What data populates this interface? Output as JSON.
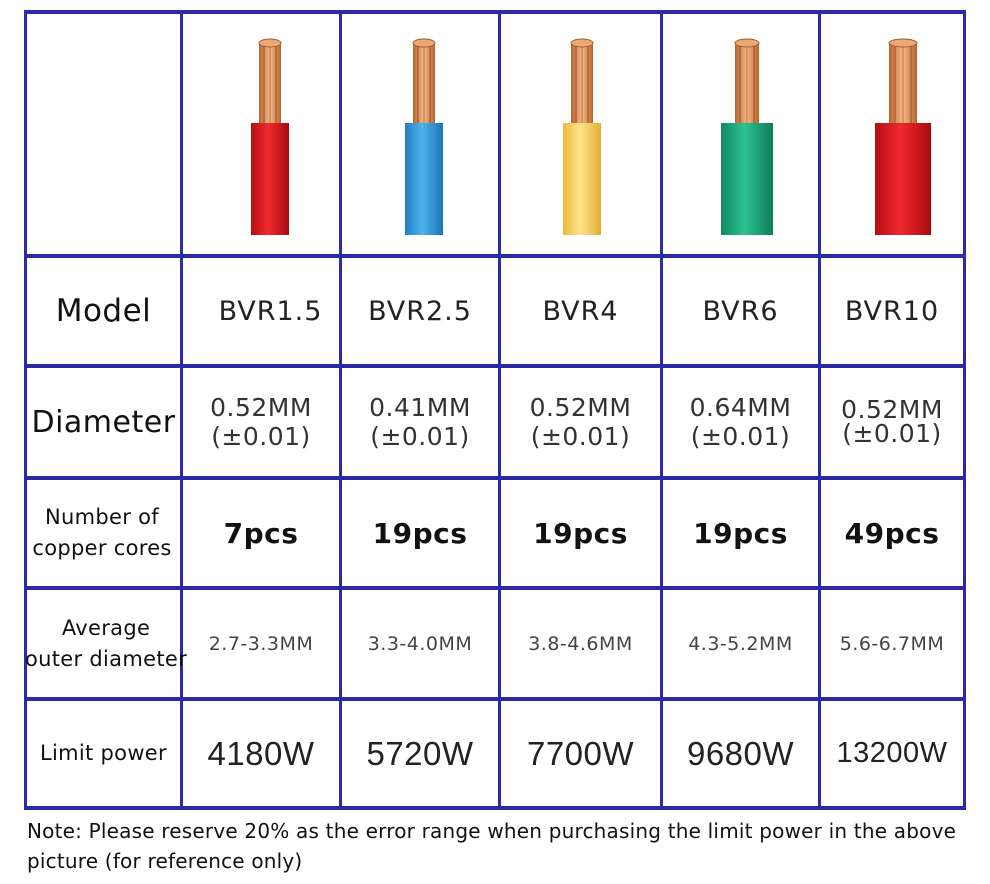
{
  "table": {
    "headers": {
      "model": "Model",
      "diameter": "Diameter",
      "cores_line1": "Number of",
      "cores_line2": "copper cores",
      "outer_line1": "Average",
      "outer_line2": "outer diameter",
      "power": "Limit power"
    },
    "columns": [
      {
        "model": "BVR1.5",
        "diameter": "0.52MM",
        "tolerance": "(±0.01)",
        "cores": "7pcs",
        "outer": "2.7-3.3MM",
        "power": "4180W",
        "insulation_color": "#e0141e"
      },
      {
        "model": "BVR2.5",
        "diameter": "0.41MM",
        "tolerance": "(±0.01)",
        "cores": "19pcs",
        "outer": "3.3-4.0MM",
        "power": "5720W",
        "insulation_color": "#2e9fdd"
      },
      {
        "model": "BVR4",
        "diameter": "0.52MM",
        "tolerance": "(±0.01)",
        "cores": "19pcs",
        "outer": "3.8-4.6MM",
        "power": "7700W",
        "insulation_color": "#f7d460"
      },
      {
        "model": "BVR6",
        "diameter": "0.64MM",
        "tolerance": "(±0.01)",
        "cores": "19pcs",
        "outer": "4.3-5.2MM",
        "power": "9680W",
        "insulation_color": "#1aa77b"
      },
      {
        "model": "BVR10",
        "diameter": "0.52MM",
        "tolerance": "(±0.01)",
        "cores": "49pcs",
        "outer": "5.6-6.7MM",
        "power": "13200W",
        "insulation_color": "#e0141e"
      }
    ]
  },
  "note": "Note: Please reserve 20% as the error range when purchasing the limit power in the above picture (for reference only)",
  "colors": {
    "grid_line": "#2b2ba8",
    "copper": "#d48a4e"
  }
}
